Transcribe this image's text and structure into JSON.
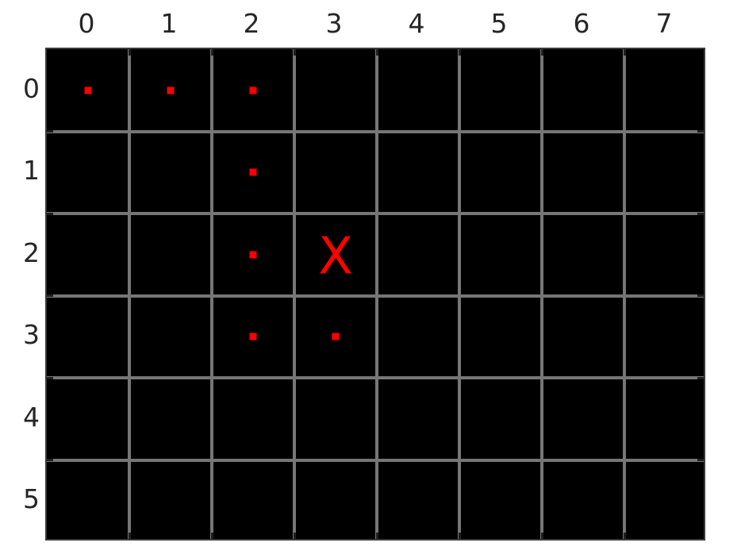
{
  "figure": {
    "x_axis_labels": [
      "0",
      "1",
      "2",
      "3",
      "4",
      "5",
      "6",
      "7"
    ],
    "y_axis_labels": [
      "0",
      "1",
      "2",
      "3",
      "4",
      "5"
    ],
    "board": {
      "columns": 8,
      "rows": 6,
      "cell_background": "#000000",
      "grid_line_color": "#767676",
      "tick_color": "#1f1f1f",
      "marker_color": "#ff0000"
    },
    "dots": [
      {
        "row": 0,
        "col": 0
      },
      {
        "row": 0,
        "col": 1
      },
      {
        "row": 0,
        "col": 2
      },
      {
        "row": 1,
        "col": 2
      },
      {
        "row": 2,
        "col": 2
      },
      {
        "row": 3,
        "col": 2
      },
      {
        "row": 3,
        "col": 3
      }
    ],
    "x_marker": {
      "row": 2,
      "col": 3,
      "glyph": "X"
    }
  },
  "chart_data": {
    "type": "scatter",
    "title": "",
    "x_tick_labels": [
      "0",
      "1",
      "2",
      "3",
      "4",
      "5",
      "6",
      "7"
    ],
    "y_tick_labels": [
      "0",
      "1",
      "2",
      "3",
      "4",
      "5"
    ],
    "x_range": [
      0,
      8
    ],
    "y_range": [
      0,
      6
    ],
    "y_axis_direction": "top-to-bottom",
    "grid": true,
    "legend": false,
    "plot_background": "#000000",
    "grid_line_color": "#767676",
    "series": [
      {
        "name": "red-dot-squares",
        "marker": "small-square",
        "color": "#ff0000",
        "points_row_col": [
          [
            0,
            0
          ],
          [
            0,
            1
          ],
          [
            0,
            2
          ],
          [
            1,
            2
          ],
          [
            2,
            2
          ],
          [
            3,
            2
          ],
          [
            3,
            3
          ]
        ]
      },
      {
        "name": "x-text-marker",
        "marker": "letter-X",
        "color": "#ff0000",
        "points_row_col": [
          [
            2,
            3
          ]
        ]
      }
    ]
  }
}
